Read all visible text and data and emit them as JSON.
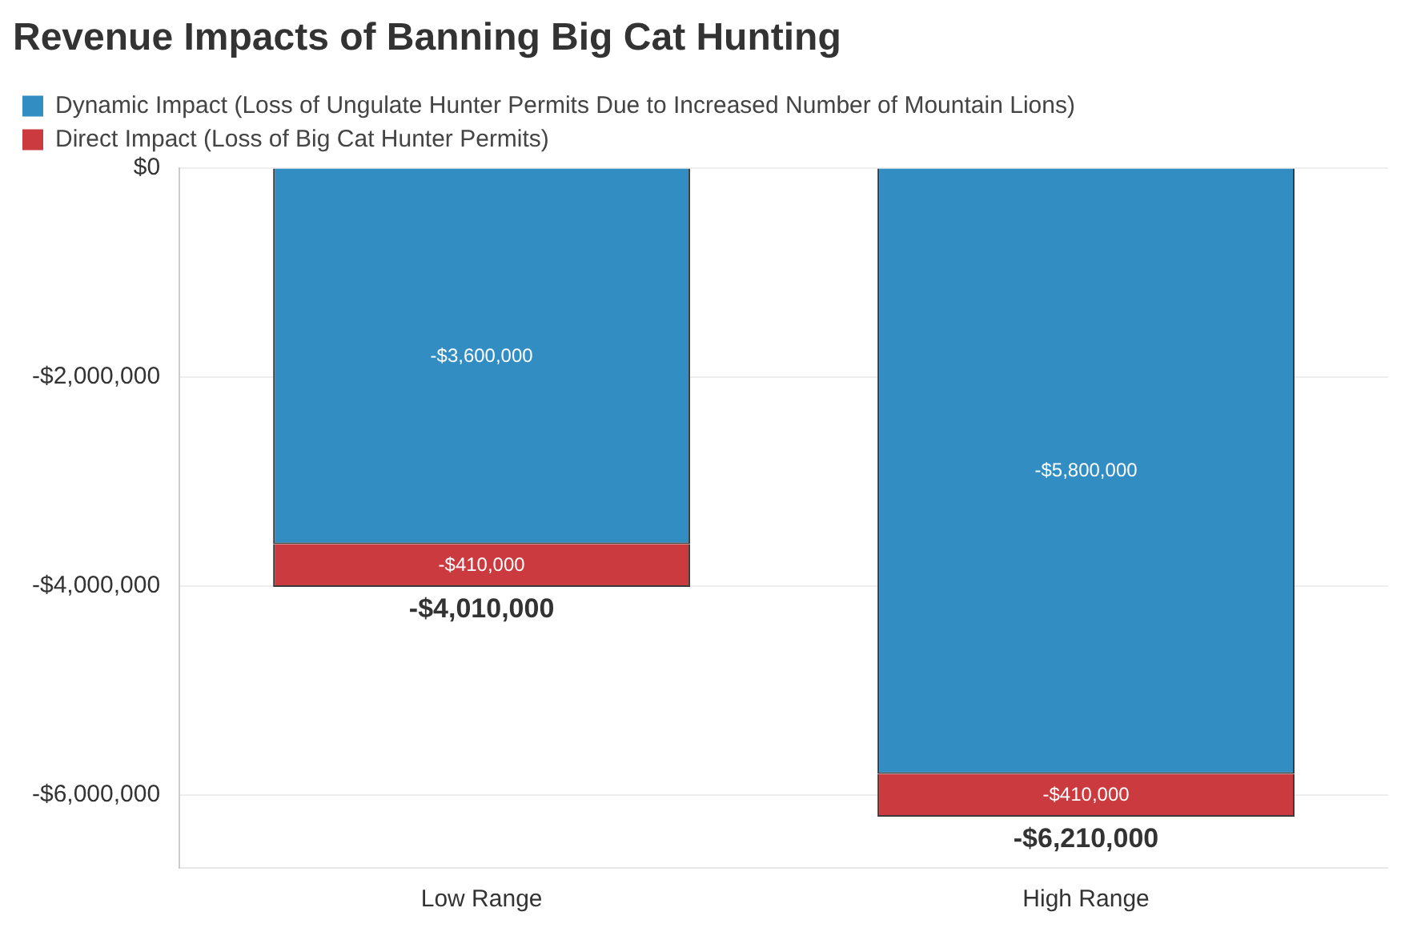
{
  "chart_data": {
    "type": "bar",
    "title": "Revenue Impacts of Banning Big Cat Hunting",
    "categories": [
      "Low Range",
      "High Range"
    ],
    "series": [
      {
        "name": "Dynamic Impact (Loss of Ungulate Hunter Permits Due to Increased Number of Mountain Lions)",
        "color": "#318dc2",
        "values": [
          -3600000,
          -5800000
        ],
        "value_labels": [
          "-$3,600,000",
          "-$5,800,000"
        ]
      },
      {
        "name": "Direct Impact (Loss of Big Cat Hunter Permits)",
        "color": "#cb3a3e",
        "values": [
          -410000,
          -410000
        ],
        "value_labels": [
          "-$410,000",
          "-$410,000"
        ]
      }
    ],
    "stacked": true,
    "totals": [
      "-$4,010,000",
      "-$6,210,000"
    ],
    "ylim": [
      -6700000,
      0
    ],
    "yticks": [
      {
        "value": 0,
        "label": "$0"
      },
      {
        "value": -2000000,
        "label": "-$2,000,000"
      },
      {
        "value": -4000000,
        "label": "-$4,000,000"
      },
      {
        "value": -6000000,
        "label": "-$6,000,000"
      }
    ],
    "grid": "y",
    "legend": "top left"
  }
}
